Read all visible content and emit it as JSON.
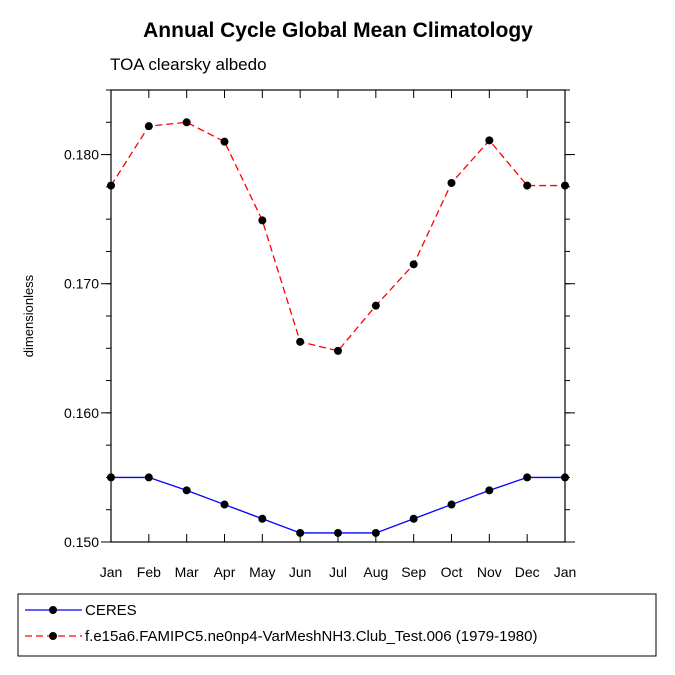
{
  "chart_data": {
    "type": "line",
    "title": "Annual Cycle Global Mean Climatology",
    "subtitle": "TOA clearsky albedo",
    "xlabel": "",
    "ylabel": "dimensionless",
    "categories": [
      "Jan",
      "Feb",
      "Mar",
      "Apr",
      "May",
      "Jun",
      "Jul",
      "Aug",
      "Sep",
      "Oct",
      "Nov",
      "Dec",
      "Jan"
    ],
    "ylim": [
      0.15,
      0.185
    ],
    "yticks": [
      0.15,
      0.16,
      0.17,
      0.18
    ],
    "ytick_labels": [
      "0.150",
      "0.160",
      "0.170",
      "0.180"
    ],
    "grid": false,
    "legend_position": "bottom",
    "series": [
      {
        "name": "CERES",
        "color": "#0000ff",
        "line_style": "solid",
        "marker": "filled-circle",
        "values": [
          0.155,
          0.155,
          0.154,
          0.1529,
          0.1518,
          0.1507,
          0.1507,
          0.1507,
          0.1518,
          0.1529,
          0.154,
          0.155,
          0.155
        ]
      },
      {
        "name": "f.e15a6.FAMIPC5.ne0np4-VarMeshNH3.Club_Test.006 (1979-1980)",
        "color": "#ff0000",
        "line_style": "dashed",
        "marker": "filled-circle",
        "values": [
          0.1776,
          0.1822,
          0.1825,
          0.181,
          0.1749,
          0.1655,
          0.1648,
          0.1683,
          0.1715,
          0.1778,
          0.1811,
          0.1776,
          0.1776
        ]
      }
    ]
  }
}
